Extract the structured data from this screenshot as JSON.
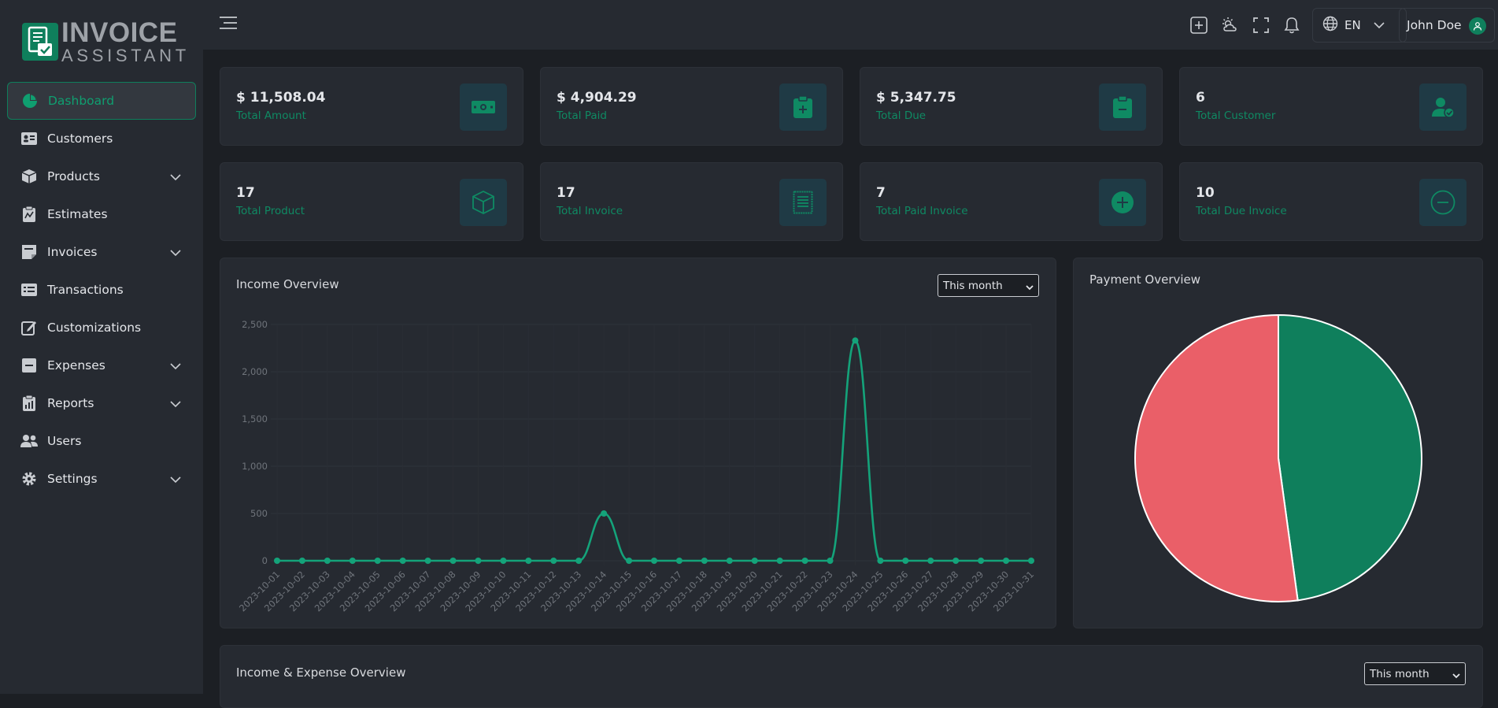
{
  "brand": {
    "title": "INVOICE",
    "subtitle": "ASSISTANT"
  },
  "sidebar": {
    "items": [
      {
        "label": "Dashboard",
        "icon": "pie-chart-icon",
        "active": true
      },
      {
        "label": "Customers",
        "icon": "id-card-icon"
      },
      {
        "label": "Products",
        "icon": "box-icon",
        "expandable": true
      },
      {
        "label": "Estimates",
        "icon": "clipboard-chart-icon"
      },
      {
        "label": "Invoices",
        "icon": "note-icon",
        "expandable": true
      },
      {
        "label": "Transactions",
        "icon": "transactions-icon"
      },
      {
        "label": "Customizations",
        "icon": "edit-icon"
      },
      {
        "label": "Expenses",
        "icon": "minus-square-icon",
        "expandable": true
      },
      {
        "label": "Reports",
        "icon": "report-icon",
        "expandable": true
      },
      {
        "label": "Users",
        "icon": "users-icon"
      },
      {
        "label": "Settings",
        "icon": "gear-icon",
        "expandable": true
      }
    ]
  },
  "header": {
    "language": "EN",
    "user_name": "John Doe",
    "icons": [
      "add-square-icon",
      "weather-icon",
      "fullscreen-icon",
      "bell-icon",
      "globe-icon"
    ]
  },
  "stats": [
    {
      "value": "$ 11,508.04",
      "label": "Total Amount",
      "icon": "cash-icon"
    },
    {
      "value": "$ 4,904.29",
      "label": "Total Paid",
      "icon": "clipboard-plus-icon"
    },
    {
      "value": "$ 5,347.75",
      "label": "Total Due",
      "icon": "clipboard-minus-icon"
    },
    {
      "value": "6",
      "label": "Total Customer",
      "icon": "user-check-icon"
    },
    {
      "value": "17",
      "label": "Total Product",
      "icon": "cube-icon"
    },
    {
      "value": "17",
      "label": "Total Invoice",
      "icon": "receipt-icon"
    },
    {
      "value": "7",
      "label": "Total Paid Invoice",
      "icon": "plus-circle-icon"
    },
    {
      "value": "10",
      "label": "Total Due Invoice",
      "icon": "minus-circle-icon"
    }
  ],
  "income_overview": {
    "title": "Income Overview",
    "period": "This month"
  },
  "payment_overview": {
    "title": "Payment Overview"
  },
  "income_expense": {
    "title": "Income & Expense Overview",
    "period": "This month"
  },
  "colors": {
    "accent": "#0f7f5c",
    "line": "#14a37a",
    "due": "#ea5f68",
    "paid": "#0f7f5c"
  },
  "chart_data": [
    {
      "type": "line",
      "x": [
        "2023-10-01",
        "2023-10-02",
        "2023-10-03",
        "2023-10-04",
        "2023-10-05",
        "2023-10-06",
        "2023-10-07",
        "2023-10-08",
        "2023-10-09",
        "2023-10-10",
        "2023-10-11",
        "2023-10-12",
        "2023-10-13",
        "2023-10-14",
        "2023-10-15",
        "2023-10-16",
        "2023-10-17",
        "2023-10-18",
        "2023-10-19",
        "2023-10-20",
        "2023-10-21",
        "2023-10-22",
        "2023-10-23",
        "2023-10-24",
        "2023-10-25",
        "2023-10-26",
        "2023-10-27",
        "2023-10-28",
        "2023-10-29",
        "2023-10-30",
        "2023-10-31"
      ],
      "series": [
        {
          "values": [
            0,
            0,
            0,
            0,
            0,
            0,
            0,
            0,
            0,
            0,
            0,
            0,
            0,
            500,
            0,
            0,
            0,
            0,
            0,
            0,
            0,
            0,
            0,
            2330,
            0,
            0,
            0,
            0,
            0,
            0,
            0
          ]
        }
      ],
      "yticks": [
        "0",
        "500",
        "1,000",
        "1,500",
        "2,000",
        "2,500"
      ],
      "ylim": [
        0,
        2500
      ],
      "grid": true
    },
    {
      "type": "pie",
      "values": [
        4904.29,
        5347.75
      ]
    }
  ]
}
